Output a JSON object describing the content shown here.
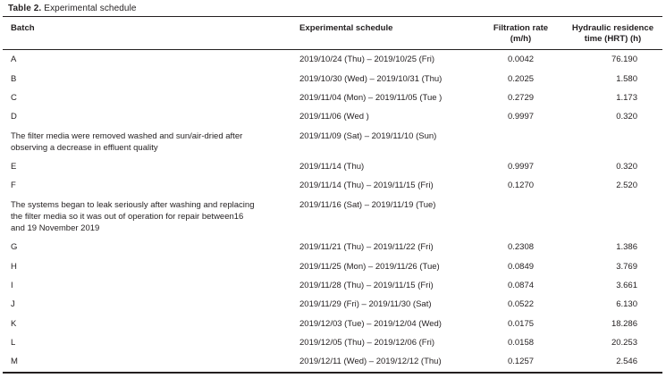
{
  "caption": {
    "label": "Table 2.",
    "text": "Experimental schedule"
  },
  "table": {
    "headers": {
      "batch": "Batch",
      "schedule": "Experimental schedule",
      "rate_line1": "Filtration rate",
      "rate_line2": "(m/h)",
      "hrt_line1": "Hydraulic residence",
      "hrt_line2": "time (HRT) (h)"
    },
    "rows": [
      {
        "batch": "A",
        "schedule": "2019/10/24 (Thu) – 2019/10/25 (Fri)",
        "rate": "0.0042",
        "hrt": "76.190",
        "note": false
      },
      {
        "batch": "B",
        "schedule": "2019/10/30 (Wed) – 2019/10/31 (Thu)",
        "rate": "0.2025",
        "hrt": "1.580",
        "note": false
      },
      {
        "batch": "C",
        "schedule": "2019/11/04 (Mon) – 2019/11/05 (Tue )",
        "rate": "0.2729",
        "hrt": "1.173",
        "note": false
      },
      {
        "batch": "D",
        "schedule": "2019/11/06 (Wed )",
        "rate": "0.9997",
        "hrt": "0.320",
        "note": false
      },
      {
        "batch": "The filter media were removed washed and sun/air-dried after observing a decrease in effluent quality",
        "schedule": "2019/11/09 (Sat) – 2019/11/10 (Sun)",
        "rate": "",
        "hrt": "",
        "note": true
      },
      {
        "batch": "E",
        "schedule": "2019/11/14 (Thu)",
        "rate": "0.9997",
        "hrt": "0.320",
        "note": false
      },
      {
        "batch": "F",
        "schedule": "2019/11/14 (Thu) – 2019/11/15 (Fri)",
        "rate": "0.1270",
        "hrt": "2.520",
        "note": false
      },
      {
        "batch": "The systems began to leak seriously after washing and replacing the filter media so it was out of operation for repair between16 and 19 November 2019",
        "schedule": "2019/11/16 (Sat) – 2019/11/19 (Tue)",
        "rate": "",
        "hrt": "",
        "note": true
      },
      {
        "batch": "G",
        "schedule": "2019/11/21 (Thu) – 2019/11/22 (Fri)",
        "rate": "0.2308",
        "hrt": "1.386",
        "note": false
      },
      {
        "batch": "H",
        "schedule": "2019/11/25 (Mon) – 2019/11/26 (Tue)",
        "rate": "0.0849",
        "hrt": "3.769",
        "note": false
      },
      {
        "batch": "I",
        "schedule": "2019/11/28 (Thu) – 2019/11/15 (Fri)",
        "rate": "0.0874",
        "hrt": "3.661",
        "note": false
      },
      {
        "batch": "J",
        "schedule": "2019/11/29 (Fri) – 2019/11/30 (Sat)",
        "rate": "0.0522",
        "hrt": "6.130",
        "note": false
      },
      {
        "batch": "K",
        "schedule": "2019/12/03 (Tue) – 2019/12/04 (Wed)",
        "rate": "0.0175",
        "hrt": "18.286",
        "note": false
      },
      {
        "batch": "L",
        "schedule": "2019/12/05 (Thu) – 2019/12/06 (Fri)",
        "rate": "0.0158",
        "hrt": "20.253",
        "note": false
      },
      {
        "batch": "M",
        "schedule": "2019/12/11 (Wed) – 2019/12/12 (Thu)",
        "rate": "0.1257",
        "hrt": "2.546",
        "note": false
      }
    ]
  }
}
